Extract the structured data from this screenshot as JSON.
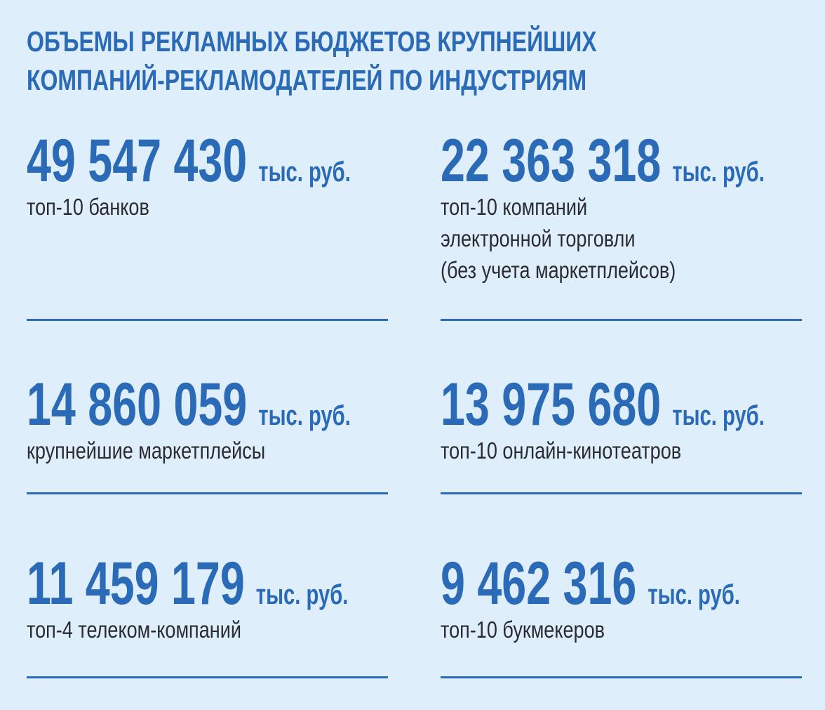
{
  "title": {
    "line1": "ОБЪЕМЫ РЕКЛАМНЫХ БЮДЖЕТОВ КРУПНЕЙШИХ",
    "line2": "КОМПАНИЙ-РЕКЛАМОДАТЕЛЕЙ ПО ИНДУСТРИЯМ"
  },
  "colors": {
    "accent": "#2a6ab6",
    "background": "#dfeefb",
    "text": "#2b2c33"
  },
  "unit": "тыс. руб.",
  "items": [
    {
      "value": "49 547 430",
      "label": [
        "топ-10 банков"
      ]
    },
    {
      "value": "22 363 318",
      "label": [
        "топ-10 компаний",
        "электронной торговли",
        "(без учета маркетплейсов)"
      ]
    },
    {
      "value": "14 860 059",
      "label": [
        "крупнейшие маркетплейсы"
      ]
    },
    {
      "value": "13 975 680",
      "label": [
        "топ-10 онлайн-кинотеатров"
      ]
    },
    {
      "value": "11 459 179",
      "label": [
        "топ-4 телеком-компаний"
      ]
    },
    {
      "value": "9 462 316",
      "label": [
        "топ-10 букмекеров"
      ]
    }
  ]
}
